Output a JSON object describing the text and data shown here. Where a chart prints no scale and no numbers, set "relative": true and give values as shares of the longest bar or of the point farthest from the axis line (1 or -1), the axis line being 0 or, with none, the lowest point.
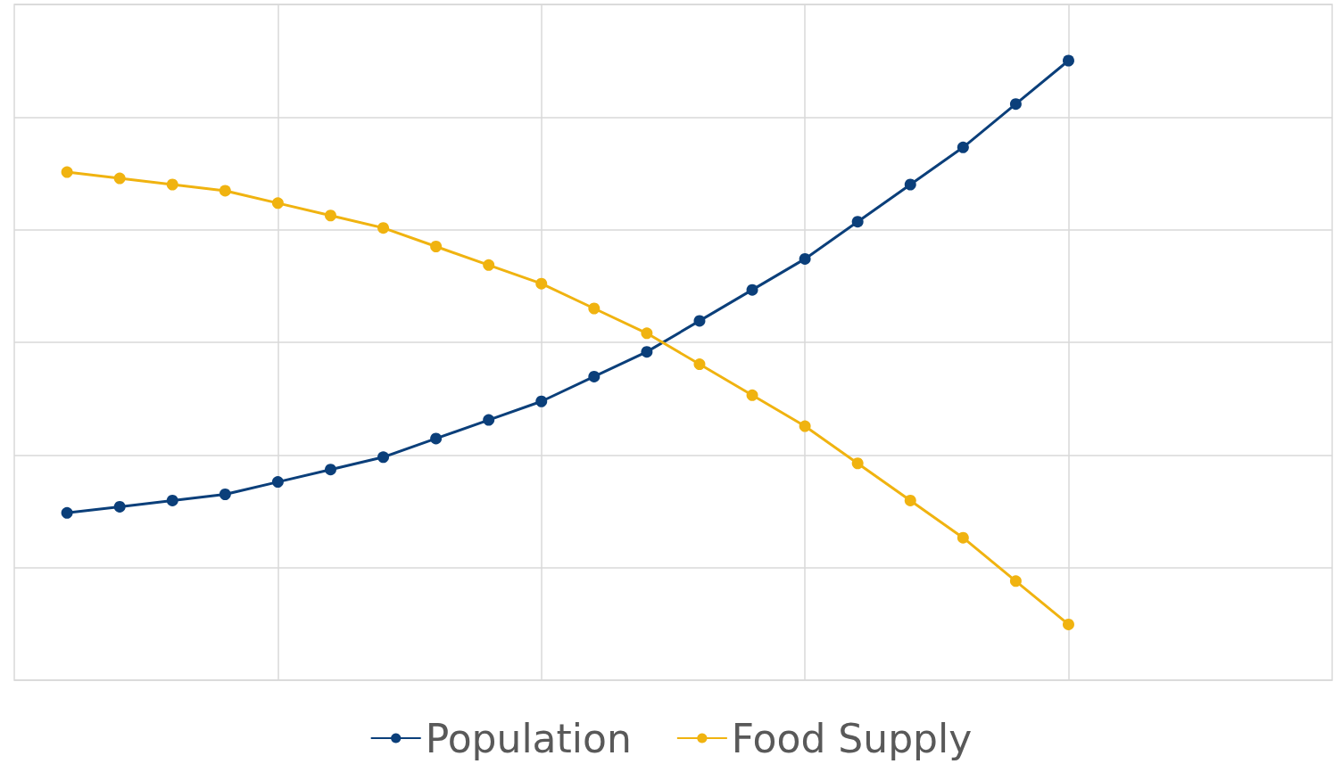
{
  "chart_data": {
    "type": "line",
    "relative": true,
    "categories": [
      null,
      null,
      null,
      null,
      null,
      null,
      null,
      null,
      null,
      null,
      null,
      null,
      null,
      null,
      null,
      null,
      null,
      null,
      null,
      null
    ],
    "grid": true,
    "legend": "bottom",
    "marker": "circle",
    "line_style": "solid",
    "series": [
      {
        "name": "Population",
        "color": "#0b3f7a",
        "values": [
          0.27,
          0.28,
          0.29,
          0.3,
          0.32,
          0.34,
          0.36,
          0.39,
          0.42,
          0.45,
          0.49,
          0.53,
          0.58,
          0.63,
          0.68,
          0.74,
          0.8,
          0.86,
          0.93,
          1
        ]
      },
      {
        "name": "Food Supply",
        "color": "#f0b310",
        "values": [
          0.82,
          0.81,
          0.8,
          0.79,
          0.77,
          0.75,
          0.73,
          0.7,
          0.67,
          0.64,
          0.6,
          0.56,
          0.51,
          0.46,
          0.41,
          0.35,
          0.29,
          0.23,
          0.16,
          0.09
        ]
      }
    ]
  }
}
